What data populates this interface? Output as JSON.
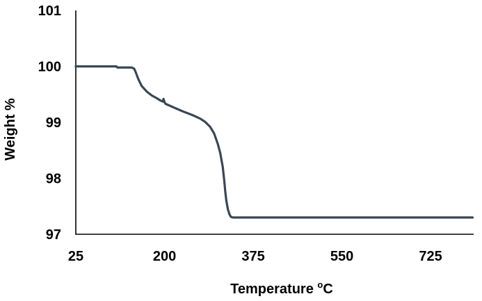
{
  "chart_data": {
    "type": "line",
    "title": "",
    "xlabel": "Temperature ",
    "xlabel_superscript": "o",
    "xlabel_suffix": "C",
    "ylabel": "Weight %",
    "xlim": [
      25,
      810
    ],
    "ylim": [
      97,
      101
    ],
    "x_ticks": [
      25,
      200,
      375,
      550,
      725
    ],
    "y_ticks": [
      97,
      98,
      99,
      100,
      101
    ],
    "x_tick_labels": [
      "25",
      "200",
      "375",
      "550",
      "725"
    ],
    "y_tick_labels": [
      "97",
      "98",
      "99",
      "100",
      "101"
    ],
    "grid": false,
    "legend": "none",
    "series": [
      {
        "color": "#3a4654",
        "x": [
          25,
          105,
          107,
          135,
          140,
          143,
          148,
          155,
          165,
          175,
          185,
          192,
          197,
          198,
          200,
          202,
          215,
          235,
          255,
          270,
          280,
          290,
          298,
          305,
          310,
          315,
          318,
          320,
          322,
          325,
          328,
          331,
          335,
          338,
          345,
          360,
          450,
          600,
          750,
          808
        ],
        "y": [
          100,
          100,
          99.98,
          99.98,
          99.96,
          99.9,
          99.78,
          99.65,
          99.55,
          99.48,
          99.43,
          99.39,
          99.37,
          99.42,
          99.36,
          99.33,
          99.28,
          99.2,
          99.13,
          99.07,
          99.01,
          98.92,
          98.8,
          98.62,
          98.45,
          98.2,
          97.95,
          97.75,
          97.6,
          97.45,
          97.36,
          97.31,
          97.3,
          97.3,
          97.3,
          97.3,
          97.3,
          97.3,
          97.3,
          97.3
        ]
      }
    ]
  }
}
